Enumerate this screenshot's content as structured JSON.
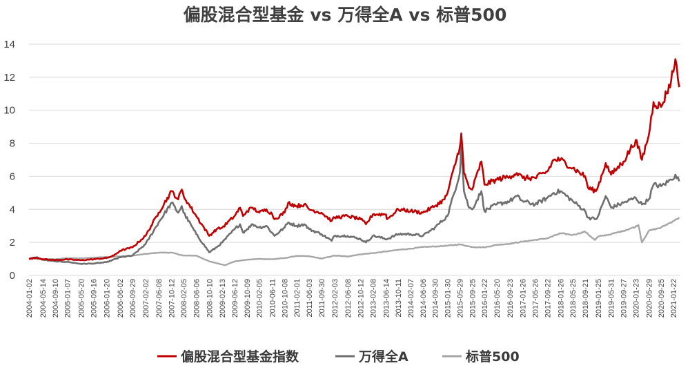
{
  "chart_data": {
    "type": "line",
    "title": "偏股混合型基金 vs 万得全A vs 标普500",
    "xlabel": "",
    "ylabel": "",
    "ylim": [
      0,
      14
    ],
    "yticks": [
      0,
      2,
      4,
      6,
      8,
      10,
      12,
      14
    ],
    "grid": "horizontal",
    "legend_position": "bottom",
    "x_tick_labels": [
      "2004-01-02",
      "2004-05-14",
      "2004-09-10",
      "2005-01-07",
      "2005-05-20",
      "2005-09-16",
      "2006-01-20",
      "2006-06-02",
      "2006-09-29",
      "2007-02-02",
      "2007-06-08",
      "2007-10-12",
      "2008-02-05",
      "2008-06-06",
      "2008-10-10",
      "2009-02-13",
      "2009-06-12",
      "2009-10-09",
      "2010-02-05",
      "2010-06-11",
      "2010-10-08",
      "2011-02-01",
      "2011-06-03",
      "2011-09-30",
      "2012-02-03",
      "2012-06-08",
      "2012-10-12",
      "2013-02-08",
      "2013-06-14",
      "2013-10-11",
      "2014-02-07",
      "2014-06-06",
      "2014-09-30",
      "2015-01-30",
      "2015-05-29",
      "2015-09-25",
      "2016-01-22",
      "2016-05-20",
      "2016-09-23",
      "2017-01-26",
      "2017-05-26",
      "2017-09-22",
      "2018-01-26",
      "2018-05-25",
      "2018-09-21",
      "2019-01-25",
      "2019-05-31",
      "2019-09-27",
      "2020-01-23",
      "2020-05-29",
      "2020-09-25",
      "2021-01-22"
    ],
    "series": [
      {
        "name": "偏股混合型基金指数",
        "color": "#c00000",
        "points": [
          [
            "2004-01-02",
            1.0
          ],
          [
            "2004-03-15",
            1.08
          ],
          [
            "2004-05-14",
            0.98
          ],
          [
            "2004-09-10",
            0.93
          ],
          [
            "2005-01-07",
            0.97
          ],
          [
            "2005-05-20",
            0.92
          ],
          [
            "2005-09-16",
            0.98
          ],
          [
            "2006-01-20",
            1.05
          ],
          [
            "2006-03-31",
            1.2
          ],
          [
            "2006-06-02",
            1.5
          ],
          [
            "2006-09-29",
            1.7
          ],
          [
            "2007-02-02",
            2.4
          ],
          [
            "2007-06-08",
            3.8
          ],
          [
            "2007-10-12",
            5.1
          ],
          [
            "2007-12-14",
            4.6
          ],
          [
            "2008-01-18",
            5.2
          ],
          [
            "2008-02-05",
            4.8
          ],
          [
            "2008-06-06",
            3.6
          ],
          [
            "2008-10-10",
            2.4
          ],
          [
            "2008-12-19",
            2.8
          ],
          [
            "2009-02-13",
            2.9
          ],
          [
            "2009-06-12",
            3.6
          ],
          [
            "2009-08-03",
            4.1
          ],
          [
            "2009-09-01",
            3.6
          ],
          [
            "2009-10-09",
            3.9
          ],
          [
            "2009-12-04",
            4.1
          ],
          [
            "2010-02-05",
            3.8
          ],
          [
            "2010-04-16",
            4.0
          ],
          [
            "2010-06-11",
            3.7
          ],
          [
            "2010-07-02",
            3.4
          ],
          [
            "2010-10-08",
            3.8
          ],
          [
            "2010-11-12",
            4.4
          ],
          [
            "2011-02-01",
            4.2
          ],
          [
            "2011-04-15",
            4.3
          ],
          [
            "2011-06-03",
            4.0
          ],
          [
            "2011-09-30",
            3.8
          ],
          [
            "2012-01-06",
            3.3
          ],
          [
            "2012-02-03",
            3.5
          ],
          [
            "2012-06-08",
            3.6
          ],
          [
            "2012-10-12",
            3.4
          ],
          [
            "2012-12-03",
            3.1
          ],
          [
            "2013-02-08",
            3.7
          ],
          [
            "2013-06-14",
            3.7
          ],
          [
            "2013-06-25",
            3.4
          ],
          [
            "2013-10-11",
            4.0
          ],
          [
            "2014-02-07",
            3.9
          ],
          [
            "2014-06-06",
            3.8
          ],
          [
            "2014-09-30",
            4.2
          ],
          [
            "2014-12-31",
            4.6
          ],
          [
            "2015-01-30",
            5.0
          ],
          [
            "2015-05-29",
            7.8
          ],
          [
            "2015-06-12",
            8.6
          ],
          [
            "2015-07-08",
            6.2
          ],
          [
            "2015-08-26",
            5.3
          ],
          [
            "2015-09-25",
            5.2
          ],
          [
            "2015-12-23",
            6.9
          ],
          [
            "2016-01-22",
            5.5
          ],
          [
            "2016-05-20",
            5.8
          ],
          [
            "2016-09-23",
            6.0
          ],
          [
            "2016-11-29",
            6.2
          ],
          [
            "2017-01-26",
            5.9
          ],
          [
            "2017-05-26",
            5.9
          ],
          [
            "2017-09-22",
            6.3
          ],
          [
            "2017-11-22",
            7.0
          ],
          [
            "2018-01-26",
            7.0
          ],
          [
            "2018-05-25",
            6.5
          ],
          [
            "2018-09-21",
            6.0
          ],
          [
            "2018-10-19",
            5.3
          ],
          [
            "2019-01-03",
            5.1
          ],
          [
            "2019-01-25",
            5.4
          ],
          [
            "2019-04-08",
            6.8
          ],
          [
            "2019-05-31",
            6.1
          ],
          [
            "2019-09-27",
            6.9
          ],
          [
            "2020-01-23",
            8.2
          ],
          [
            "2020-03-23",
            7.0
          ],
          [
            "2020-05-29",
            8.5
          ],
          [
            "2020-07-13",
            10.5
          ],
          [
            "2020-09-25",
            10.2
          ],
          [
            "2020-12-31",
            11.8
          ],
          [
            "2021-02-10",
            13.1
          ],
          [
            "2021-03-19",
            11.4
          ]
        ]
      },
      {
        "name": "万得全A",
        "color": "#6f6f6f",
        "points": [
          [
            "2004-01-02",
            1.0
          ],
          [
            "2004-03-15",
            1.1
          ],
          [
            "2004-05-14",
            0.95
          ],
          [
            "2004-09-10",
            0.85
          ],
          [
            "2005-01-07",
            0.82
          ],
          [
            "2005-05-20",
            0.7
          ],
          [
            "2005-09-16",
            0.72
          ],
          [
            "2006-01-20",
            0.8
          ],
          [
            "2006-06-02",
            1.1
          ],
          [
            "2006-09-29",
            1.2
          ],
          [
            "2007-02-02",
            1.9
          ],
          [
            "2007-06-08",
            3.2
          ],
          [
            "2007-10-12",
            4.4
          ],
          [
            "2007-12-14",
            3.8
          ],
          [
            "2008-01-18",
            4.2
          ],
          [
            "2008-02-05",
            3.8
          ],
          [
            "2008-06-06",
            2.5
          ],
          [
            "2008-10-10",
            1.4
          ],
          [
            "2008-12-19",
            1.7
          ],
          [
            "2009-02-13",
            2.0
          ],
          [
            "2009-06-12",
            2.8
          ],
          [
            "2009-08-03",
            3.1
          ],
          [
            "2009-09-01",
            2.6
          ],
          [
            "2009-10-09",
            2.8
          ],
          [
            "2009-12-04",
            3.1
          ],
          [
            "2010-02-05",
            2.9
          ],
          [
            "2010-04-16",
            3.0
          ],
          [
            "2010-07-02",
            2.4
          ],
          [
            "2010-10-08",
            2.9
          ],
          [
            "2010-11-12",
            3.2
          ],
          [
            "2011-02-01",
            3.0
          ],
          [
            "2011-04-15",
            3.1
          ],
          [
            "2011-06-03",
            2.8
          ],
          [
            "2011-09-30",
            2.5
          ],
          [
            "2012-01-06",
            2.1
          ],
          [
            "2012-02-03",
            2.4
          ],
          [
            "2012-06-08",
            2.4
          ],
          [
            "2012-10-12",
            2.2
          ],
          [
            "2012-12-03",
            2.0
          ],
          [
            "2013-02-08",
            2.4
          ],
          [
            "2013-06-25",
            2.2
          ],
          [
            "2013-10-11",
            2.5
          ],
          [
            "2014-02-07",
            2.5
          ],
          [
            "2014-06-06",
            2.4
          ],
          [
            "2014-09-30",
            2.9
          ],
          [
            "2015-01-30",
            3.6
          ],
          [
            "2015-05-29",
            6.2
          ],
          [
            "2015-06-12",
            7.8
          ],
          [
            "2015-07-08",
            5.1
          ],
          [
            "2015-08-26",
            4.1
          ],
          [
            "2015-09-25",
            4.0
          ],
          [
            "2015-12-23",
            5.1
          ],
          [
            "2016-01-22",
            3.9
          ],
          [
            "2016-05-20",
            4.3
          ],
          [
            "2016-09-23",
            4.5
          ],
          [
            "2016-11-29",
            4.8
          ],
          [
            "2017-01-26",
            4.5
          ],
          [
            "2017-05-26",
            4.3
          ],
          [
            "2017-09-22",
            4.7
          ],
          [
            "2017-11-22",
            5.0
          ],
          [
            "2018-01-26",
            5.1
          ],
          [
            "2018-05-25",
            4.5
          ],
          [
            "2018-09-21",
            3.9
          ],
          [
            "2018-10-19",
            3.5
          ],
          [
            "2019-01-03",
            3.4
          ],
          [
            "2019-01-25",
            3.6
          ],
          [
            "2019-04-08",
            4.8
          ],
          [
            "2019-05-31",
            4.1
          ],
          [
            "2019-09-27",
            4.4
          ],
          [
            "2020-01-23",
            4.7
          ],
          [
            "2020-03-23",
            4.3
          ],
          [
            "2020-05-29",
            4.6
          ],
          [
            "2020-07-13",
            5.5
          ],
          [
            "2020-09-25",
            5.4
          ],
          [
            "2020-12-31",
            5.8
          ],
          [
            "2021-02-10",
            6.1
          ],
          [
            "2021-03-19",
            5.7
          ]
        ]
      },
      {
        "name": "标普500",
        "color": "#a6a6a6",
        "points": [
          [
            "2004-01-02",
            1.0
          ],
          [
            "2004-05-14",
            1.0
          ],
          [
            "2004-09-10",
            0.98
          ],
          [
            "2005-01-07",
            1.05
          ],
          [
            "2005-05-20",
            1.03
          ],
          [
            "2005-09-16",
            1.08
          ],
          [
            "2006-01-20",
            1.12
          ],
          [
            "2006-06-02",
            1.15
          ],
          [
            "2006-09-29",
            1.2
          ],
          [
            "2007-02-02",
            1.3
          ],
          [
            "2007-06-08",
            1.38
          ],
          [
            "2007-10-12",
            1.38
          ],
          [
            "2008-02-05",
            1.2
          ],
          [
            "2008-06-06",
            1.2
          ],
          [
            "2008-10-10",
            0.85
          ],
          [
            "2009-03-09",
            0.62
          ],
          [
            "2009-06-12",
            0.85
          ],
          [
            "2009-10-09",
            0.95
          ],
          [
            "2010-02-05",
            1.0
          ],
          [
            "2010-06-11",
            0.98
          ],
          [
            "2010-10-08",
            1.05
          ],
          [
            "2011-02-01",
            1.18
          ],
          [
            "2011-06-03",
            1.16
          ],
          [
            "2011-09-30",
            1.02
          ],
          [
            "2012-02-03",
            1.2
          ],
          [
            "2012-06-08",
            1.15
          ],
          [
            "2012-10-12",
            1.28
          ],
          [
            "2013-02-08",
            1.35
          ],
          [
            "2013-06-14",
            1.45
          ],
          [
            "2013-10-11",
            1.55
          ],
          [
            "2014-02-07",
            1.62
          ],
          [
            "2014-06-06",
            1.72
          ],
          [
            "2014-09-30",
            1.75
          ],
          [
            "2015-01-30",
            1.8
          ],
          [
            "2015-05-29",
            1.88
          ],
          [
            "2015-09-25",
            1.72
          ],
          [
            "2016-01-22",
            1.7
          ],
          [
            "2016-05-20",
            1.85
          ],
          [
            "2016-09-23",
            1.92
          ],
          [
            "2017-01-26",
            2.05
          ],
          [
            "2017-05-26",
            2.15
          ],
          [
            "2017-09-22",
            2.25
          ],
          [
            "2018-01-26",
            2.55
          ],
          [
            "2018-05-25",
            2.45
          ],
          [
            "2018-09-21",
            2.65
          ],
          [
            "2018-12-24",
            2.15
          ],
          [
            "2019-01-25",
            2.35
          ],
          [
            "2019-05-31",
            2.5
          ],
          [
            "2019-09-27",
            2.7
          ],
          [
            "2020-01-23",
            2.95
          ],
          [
            "2020-02-19",
            3.05
          ],
          [
            "2020-03-23",
            2.0
          ],
          [
            "2020-05-29",
            2.7
          ],
          [
            "2020-09-25",
            2.9
          ],
          [
            "2021-01-22",
            3.3
          ],
          [
            "2021-03-19",
            3.5
          ]
        ]
      }
    ]
  }
}
